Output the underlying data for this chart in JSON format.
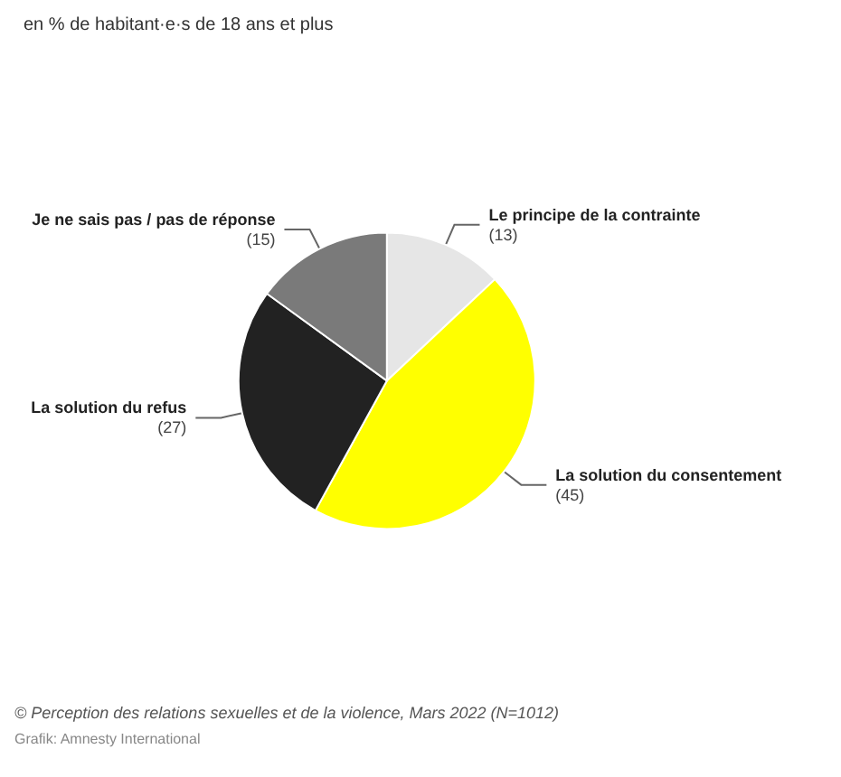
{
  "chart_data": {
    "type": "pie",
    "title": "en % de habitant·e·s de 18 ans et plus",
    "categories": [
      "Le principe de la contrainte",
      "La solution du consentement",
      "La solution du refus",
      "Je ne sais pas / pas de réponse"
    ],
    "values": [
      13,
      45,
      27,
      15
    ],
    "colors": [
      "#e6e6e6",
      "#ffff00",
      "#222222",
      "#7a7a7a"
    ],
    "value_labels": [
      "(13)",
      "(45)",
      "(27)",
      "(15)"
    ],
    "legend": false,
    "annotations": [
      "© Perception des relations sexuelles et de la violence, Mars 2022 (N=1012)",
      "Grafik: Amnesty International"
    ]
  }
}
